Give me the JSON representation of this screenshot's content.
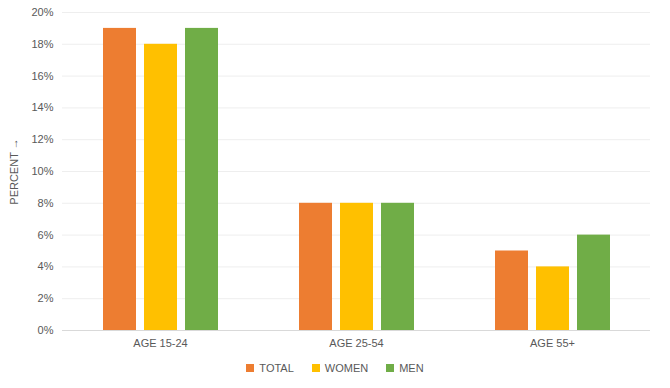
{
  "chart_data": {
    "type": "bar",
    "categories": [
      "AGE 15-24",
      "AGE 25-54",
      "AGE 55+"
    ],
    "series": [
      {
        "name": "TOTAL",
        "color": "#ED7D31",
        "values": [
          19,
          8,
          5
        ]
      },
      {
        "name": "WOMEN",
        "color": "#FFC000",
        "values": [
          18,
          8,
          4
        ]
      },
      {
        "name": "MEN",
        "color": "#70AD47",
        "values": [
          19,
          8,
          6
        ]
      }
    ],
    "y_label": "PERCENT",
    "ylim": [
      0,
      20
    ],
    "yticks": [
      {
        "value": 0,
        "label": "0%"
      },
      {
        "value": 2,
        "label": "2%"
      },
      {
        "value": 4,
        "label": "4%"
      },
      {
        "value": 6,
        "label": "6%"
      },
      {
        "value": 8,
        "label": "8%"
      },
      {
        "value": 10,
        "label": "10%"
      },
      {
        "value": 12,
        "label": "12%"
      },
      {
        "value": 14,
        "label": "14%"
      },
      {
        "value": 16,
        "label": "16%"
      },
      {
        "value": 18,
        "label": "18%"
      },
      {
        "value": 20,
        "label": "20%"
      }
    ],
    "grid": true,
    "legend": "bottom"
  }
}
